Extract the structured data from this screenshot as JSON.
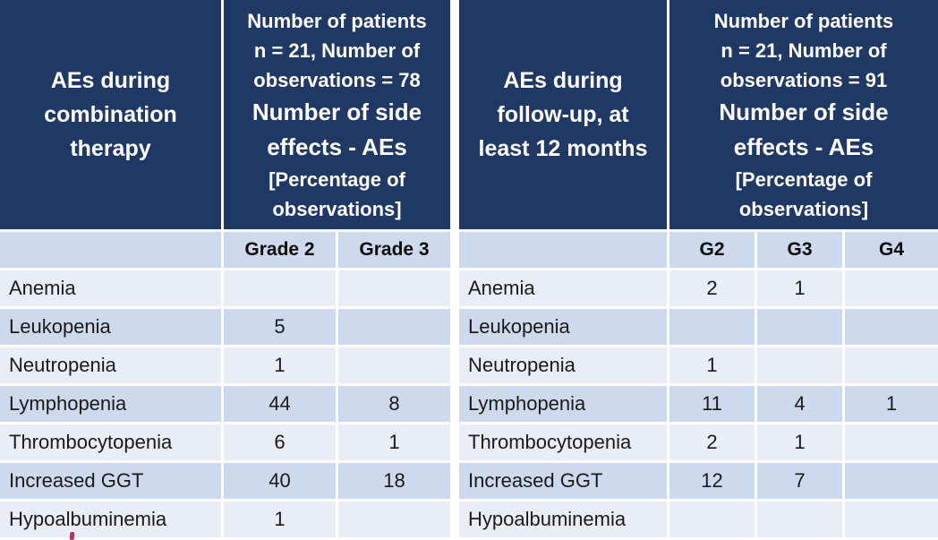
{
  "colors": {
    "header_bg": "#1F3864",
    "header_text": "#FFFFFF",
    "stripe_dark": "#CDD9EC",
    "stripe_light": "#E9EEF6",
    "body_text": "#1A1A1A",
    "artifact_pink": "#B23A68"
  },
  "tables": [
    {
      "title": "AEs during\ncombination\ntherapy",
      "stats": {
        "patients_line": "Number of patients\nn = 21, Number of\nobservations = 78",
        "side_effects_line": "Number of side\neffects - AEs",
        "percentage_line": "[Percentage of\nobservations]"
      },
      "grade_columns": [
        "Grade 2",
        "Grade 3"
      ],
      "rows": [
        {
          "label": "Anemia",
          "values": [
            "",
            ""
          ]
        },
        {
          "label": "Leukopenia",
          "values": [
            "5",
            ""
          ]
        },
        {
          "label": "Neutropenia",
          "values": [
            "1",
            ""
          ]
        },
        {
          "label": "Lymphopenia",
          "values": [
            "44",
            "8"
          ]
        },
        {
          "label": "Thrombocytopenia",
          "values": [
            "6",
            "1"
          ]
        },
        {
          "label": "Increased GGT",
          "values": [
            "40",
            "18"
          ]
        },
        {
          "label": "Hypoalbuminemia",
          "values": [
            "1",
            ""
          ]
        }
      ]
    },
    {
      "title": "AEs during\nfollow-up, at\nleast 12 months",
      "stats": {
        "patients_line": "Number of patients\nn = 21, Number of\nobservations = 91",
        "side_effects_line": "Number of side\neffects - AEs",
        "percentage_line": "[Percentage of\nobservations]"
      },
      "grade_columns": [
        "G2",
        "G3",
        "G4"
      ],
      "rows": [
        {
          "label": "Anemia",
          "values": [
            "2",
            "1",
            ""
          ]
        },
        {
          "label": "Leukopenia",
          "values": [
            "",
            "",
            ""
          ]
        },
        {
          "label": "Neutropenia",
          "values": [
            "1",
            "",
            ""
          ]
        },
        {
          "label": "Lymphopenia",
          "values": [
            "11",
            "4",
            "1"
          ]
        },
        {
          "label": "Thrombocytopenia",
          "values": [
            "2",
            "1",
            ""
          ]
        },
        {
          "label": "Increased GGT",
          "values": [
            "12",
            "7",
            ""
          ]
        },
        {
          "label": "Hypoalbuminemia",
          "values": [
            "",
            "",
            ""
          ]
        }
      ]
    }
  ]
}
